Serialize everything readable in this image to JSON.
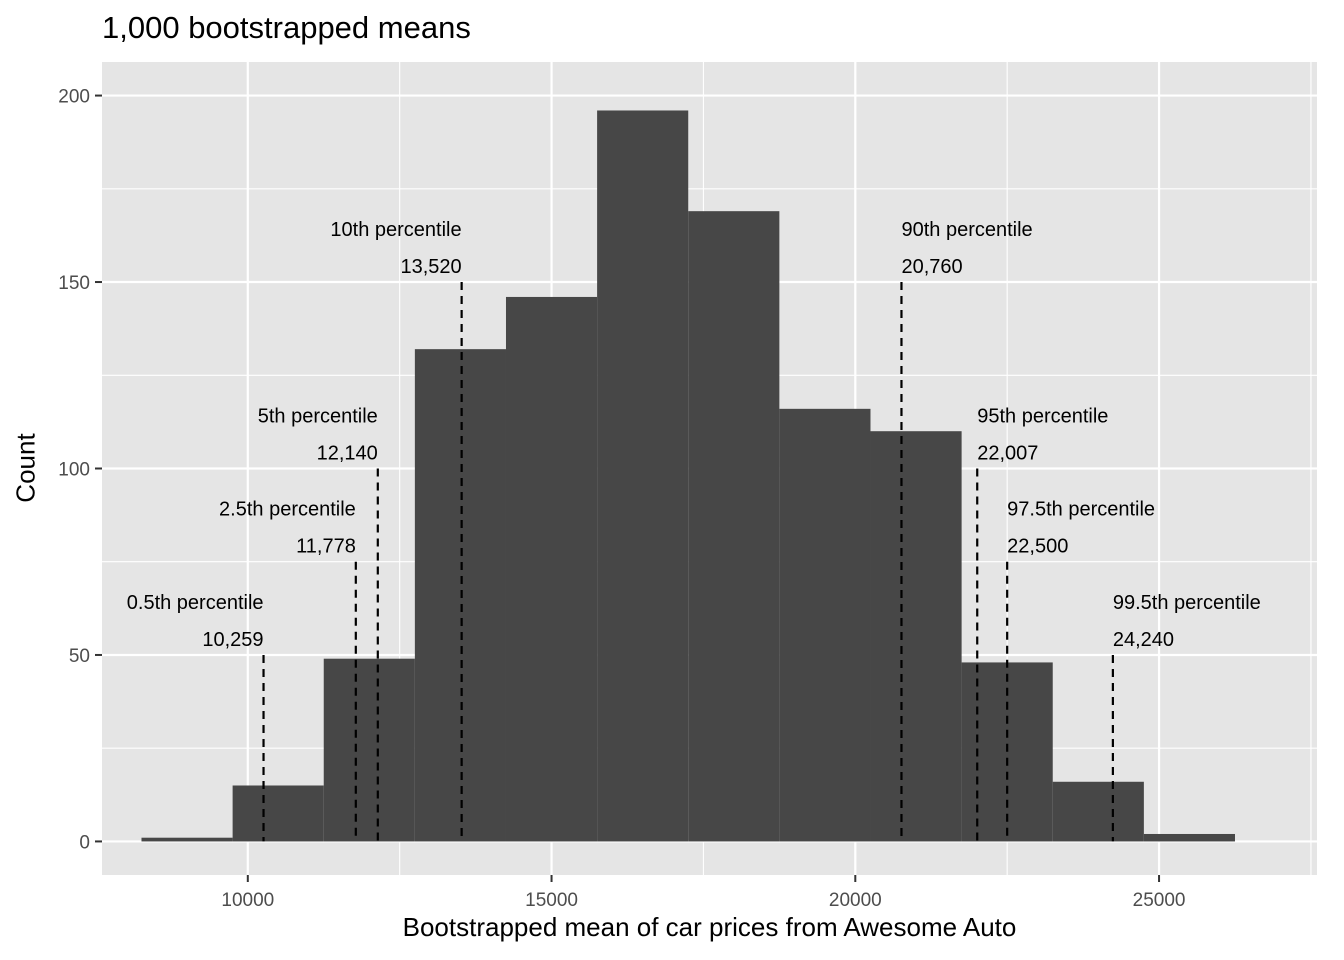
{
  "chart_data": {
    "type": "bar",
    "title": "1,000 bootstrapped means",
    "xlabel": "Bootstrapped mean of car prices from Awesome Auto",
    "ylabel": "Count",
    "xlim": [
      7600,
      27600
    ],
    "ylim": [
      -9,
      209
    ],
    "x_ticks": [
      10000,
      15000,
      20000,
      25000
    ],
    "x_tick_labels": [
      "10000",
      "15000",
      "20000",
      "25000"
    ],
    "y_ticks": [
      0,
      50,
      100,
      150,
      200
    ],
    "y_tick_labels": [
      "0",
      "50",
      "100",
      "150",
      "200"
    ],
    "grid": true,
    "bins": [
      {
        "start": 8250,
        "end": 9750,
        "count": 1
      },
      {
        "start": 9750,
        "end": 11250,
        "count": 15
      },
      {
        "start": 11250,
        "end": 12750,
        "count": 49
      },
      {
        "start": 12750,
        "end": 14250,
        "count": 132
      },
      {
        "start": 14250,
        "end": 15750,
        "count": 146
      },
      {
        "start": 15750,
        "end": 17250,
        "count": 196
      },
      {
        "start": 17250,
        "end": 18750,
        "count": 169
      },
      {
        "start": 18750,
        "end": 20250,
        "count": 116
      },
      {
        "start": 20250,
        "end": 21750,
        "count": 110
      },
      {
        "start": 21750,
        "end": 23250,
        "count": 48
      },
      {
        "start": 23250,
        "end": 24750,
        "count": 16
      },
      {
        "start": 24750,
        "end": 26250,
        "count": 2
      }
    ],
    "percentiles": [
      {
        "label": "0.5th percentile",
        "value_label": "10,259",
        "x": 10259,
        "line_top": 50,
        "side": "left"
      },
      {
        "label": "2.5th percentile",
        "value_label": "11,778",
        "x": 11778,
        "line_top": 75,
        "side": "left"
      },
      {
        "label": "5th percentile",
        "value_label": "12,140",
        "x": 12140,
        "line_top": 100,
        "side": "left"
      },
      {
        "label": "10th percentile",
        "value_label": "13,520",
        "x": 13520,
        "line_top": 150,
        "side": "left"
      },
      {
        "label": "90th percentile",
        "value_label": "20,760",
        "x": 20760,
        "line_top": 150,
        "side": "right"
      },
      {
        "label": "95th percentile",
        "value_label": "22,007",
        "x": 22007,
        "line_top": 100,
        "side": "right"
      },
      {
        "label": "97.5th percentile",
        "value_label": "22,500",
        "x": 22500,
        "line_top": 75,
        "side": "right"
      },
      {
        "label": "99.5th percentile",
        "value_label": "24,240",
        "x": 24240,
        "line_top": 50,
        "side": "right"
      }
    ],
    "colors": {
      "panel": "#e5e5e5",
      "grid": "#ffffff",
      "bar": "#474747",
      "line": "#000000",
      "tick_text": "#4d4d4d"
    }
  }
}
